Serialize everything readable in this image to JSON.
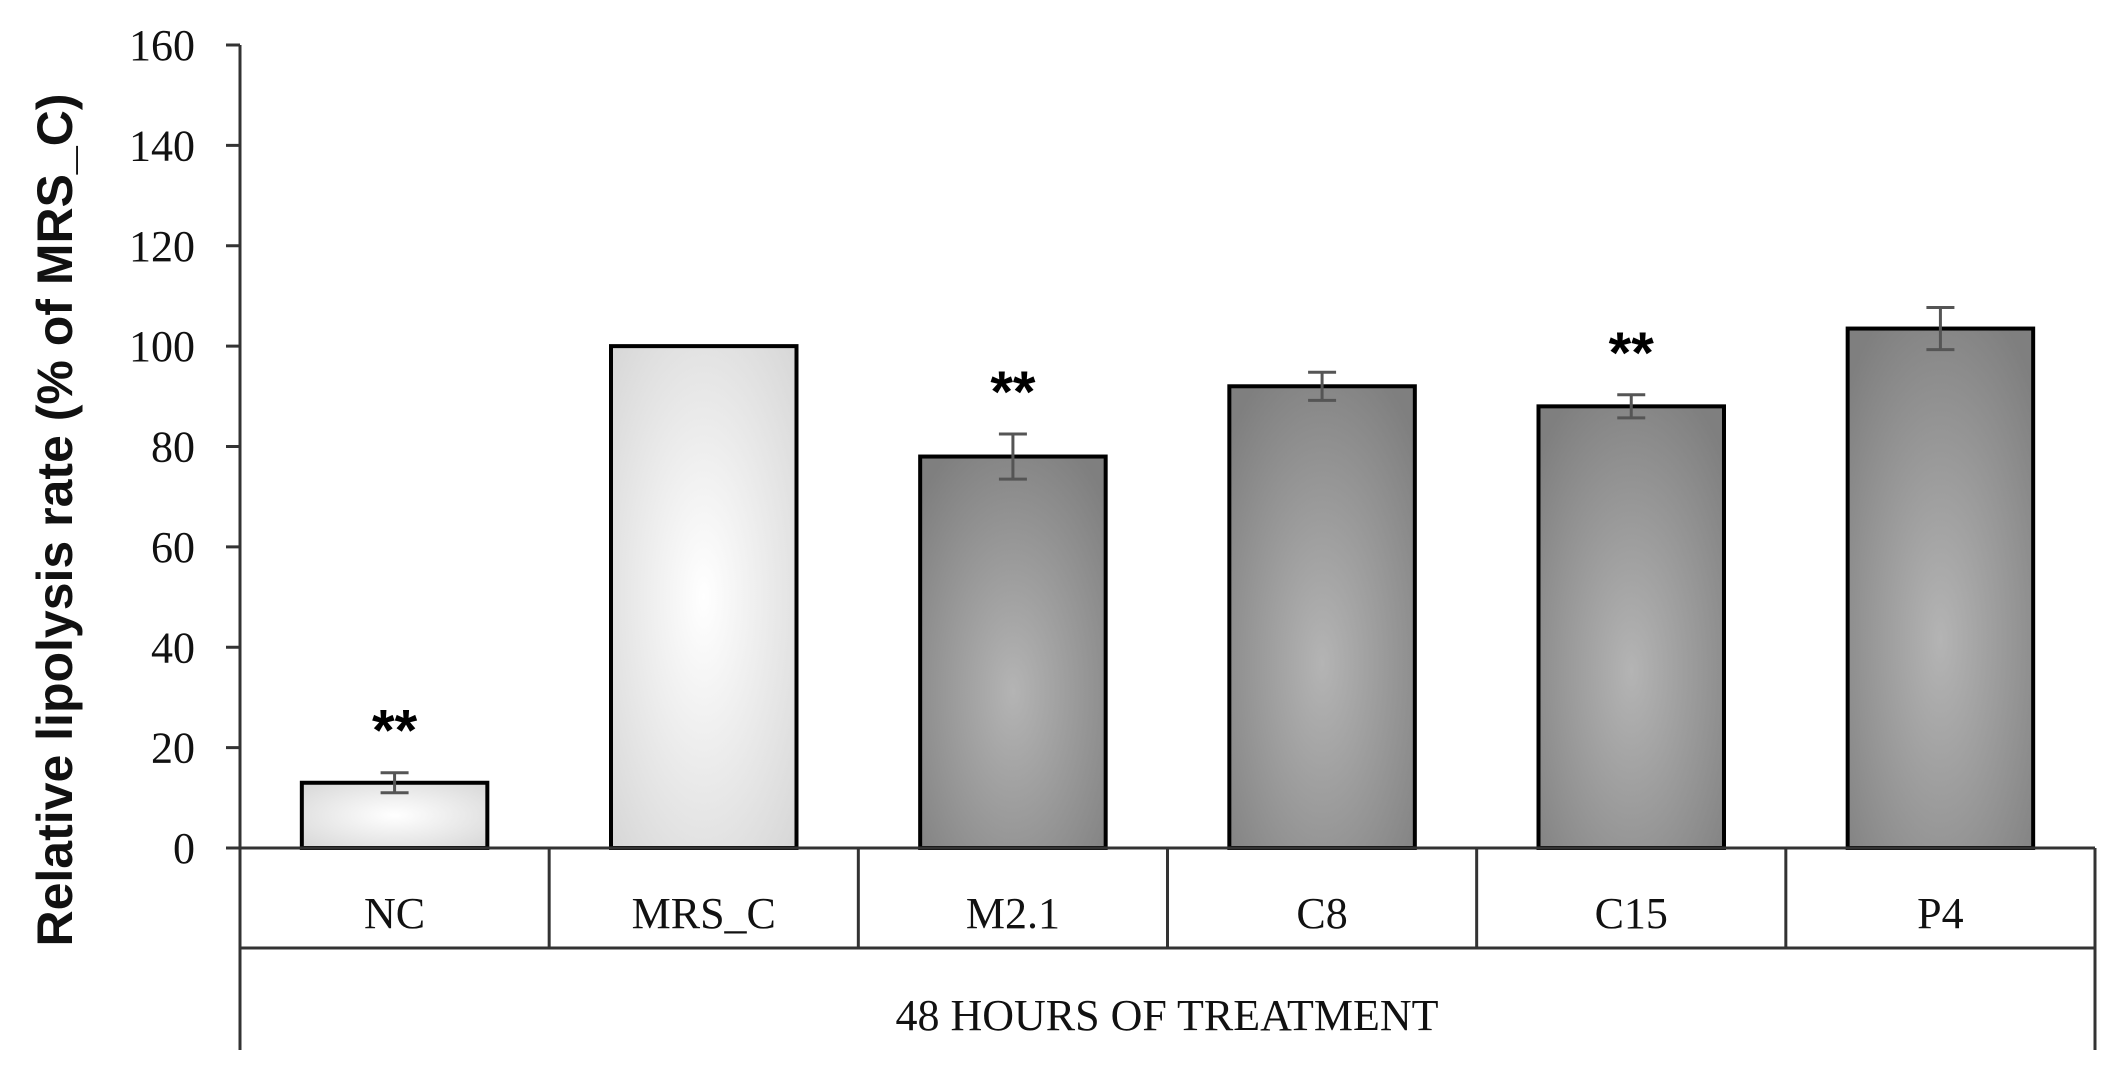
{
  "chart_data": {
    "type": "bar",
    "title": "",
    "xlabel": "",
    "ylabel": "Relative lipolysis rate (% of MRS_C)",
    "group_label": "48 HOURS OF TREATMENT",
    "ylim": [
      0,
      160
    ],
    "yticks": [
      0,
      20,
      40,
      60,
      80,
      100,
      120,
      140,
      160
    ],
    "categories": [
      "NC",
      "MRS_C",
      "M2.1",
      "C8",
      "C15",
      "P4"
    ],
    "values": [
      13,
      100,
      78,
      92,
      88,
      103.5
    ],
    "errors": [
      2,
      0,
      4.5,
      2.8,
      2.3,
      4.2
    ],
    "significance": [
      "**",
      "",
      "**",
      "",
      "**",
      ""
    ],
    "bar_styles": [
      "light",
      "light",
      "dark",
      "dark",
      "dark",
      "dark"
    ],
    "colors": {
      "light_edge": "#d4d4d4",
      "light_center": "#ffffff",
      "dark_edge": "#7f7f7f",
      "dark_center": "#b4b4b4",
      "bar_outline": "#000000",
      "error_bar": "#555555",
      "axis": "#333333"
    }
  }
}
